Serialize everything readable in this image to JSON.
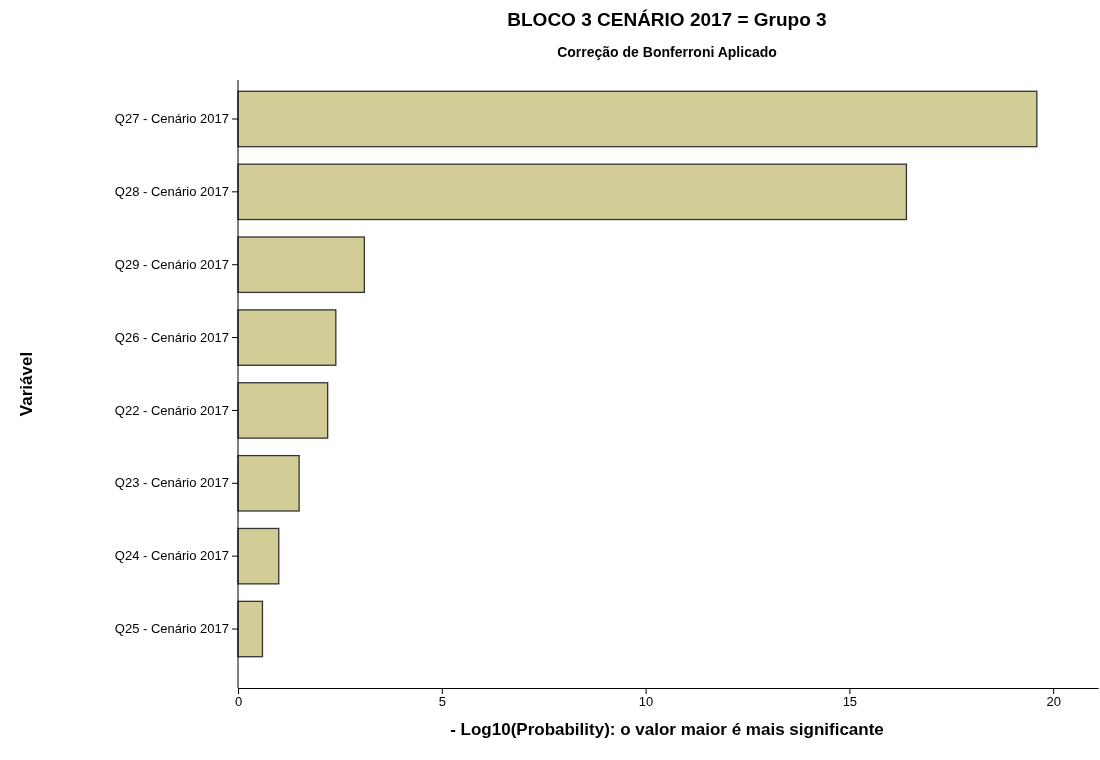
{
  "chart_data": {
    "type": "bar",
    "orientation": "horizontal",
    "title": "BLOCO 3 CENÁRIO 2017 = Grupo 3",
    "subtitle": "Correção de Bonferroni Aplicado",
    "xlabel": "- Log10(Probability): o valor maior é mais significante",
    "ylabel": "Variável",
    "categories": [
      "Q27 - Cenário 2017",
      "Q28 - Cenário 2017",
      "Q29 - Cenário 2017",
      "Q26 - Cenário 2017",
      "Q22 - Cenário 2017",
      "Q23 - Cenário 2017",
      "Q24 - Cenário 2017",
      "Q25 - Cenário 2017"
    ],
    "values": [
      19.6,
      16.4,
      3.1,
      2.4,
      2.2,
      1.5,
      1.0,
      0.6
    ],
    "color": "#d2cd96",
    "xlim": [
      0,
      21.1
    ],
    "xticks": [
      0,
      5,
      10,
      15,
      20
    ],
    "grid": false
  }
}
